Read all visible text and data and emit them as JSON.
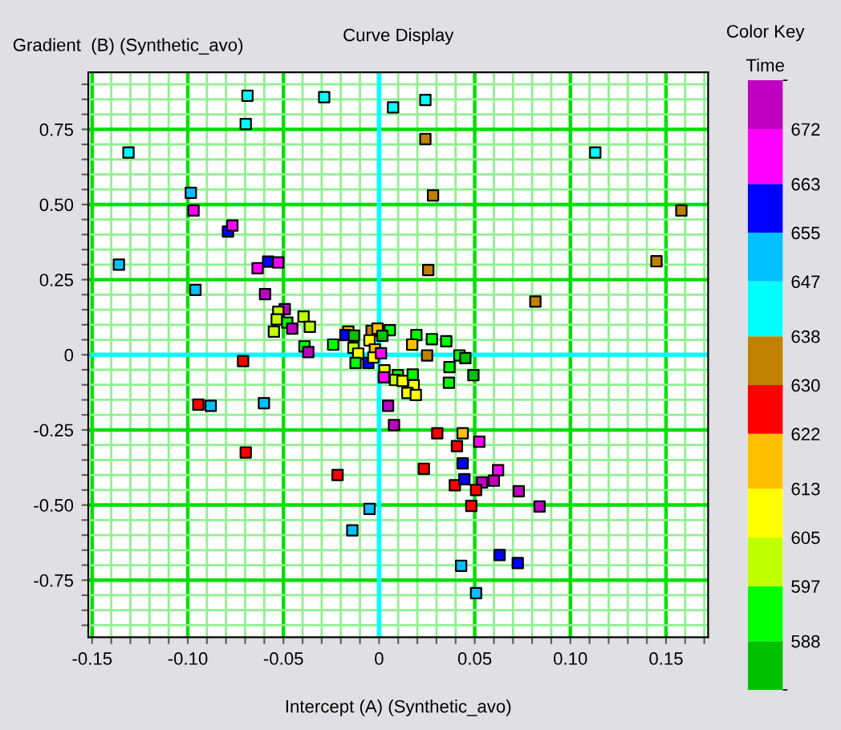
{
  "chart_data": {
    "type": "scatter",
    "title": "Curve Display",
    "xlabel": "Intercept (A) (Synthetic_avo)",
    "ylabel": "Gradient  (B) (Synthetic_avo)",
    "clabel": "Time",
    "annotations": [
      "Color Key"
    ],
    "xlim": [
      -0.152,
      0.172
    ],
    "ylim": [
      -0.94,
      0.94
    ],
    "xticks": [
      {
        "value": -0.15,
        "label": "-0.15"
      },
      {
        "value": -0.14,
        "label": null
      },
      {
        "value": -0.13,
        "label": null
      },
      {
        "value": -0.12,
        "label": null
      },
      {
        "value": -0.11,
        "label": null
      },
      {
        "value": -0.1,
        "label": "-0.10"
      },
      {
        "value": -0.09,
        "label": null
      },
      {
        "value": -0.08,
        "label": null
      },
      {
        "value": -0.07,
        "label": null
      },
      {
        "value": -0.06,
        "label": null
      },
      {
        "value": -0.05,
        "label": "-0.05"
      },
      {
        "value": -0.04,
        "label": null
      },
      {
        "value": -0.03,
        "label": null
      },
      {
        "value": -0.02,
        "label": null
      },
      {
        "value": -0.01,
        "label": null
      },
      0,
      {
        "value": 0.01,
        "label": null
      },
      {
        "value": 0.02,
        "label": null
      },
      {
        "value": 0.03,
        "label": null
      },
      {
        "value": 0.04,
        "label": null
      },
      0.05,
      {
        "value": 0.06,
        "label": null
      },
      {
        "value": 0.07,
        "label": null
      },
      {
        "value": 0.08,
        "label": null
      },
      {
        "value": 0.09,
        "label": null
      },
      {
        "value": 0.1,
        "label": "0.10"
      },
      {
        "value": 0.11,
        "label": null
      },
      {
        "value": 0.12,
        "label": null
      },
      {
        "value": 0.13,
        "label": null
      },
      {
        "value": 0.14,
        "label": null
      },
      0.15,
      {
        "value": 0.16,
        "label": null
      },
      {
        "value": 0.17,
        "label": null
      }
    ],
    "yticks": [
      {
        "value": -0.9,
        "label": null
      },
      {
        "value": -0.85,
        "label": null
      },
      {
        "value": -0.8,
        "label": null
      },
      -0.75,
      {
        "value": -0.7,
        "label": null
      },
      {
        "value": -0.65,
        "label": null
      },
      {
        "value": -0.6,
        "label": null
      },
      {
        "value": -0.55,
        "label": null
      },
      {
        "value": -0.5,
        "label": "-0.50"
      },
      {
        "value": -0.45,
        "label": null
      },
      {
        "value": -0.4,
        "label": null
      },
      {
        "value": -0.35,
        "label": null
      },
      {
        "value": -0.3,
        "label": null
      },
      -0.25,
      {
        "value": -0.2,
        "label": null
      },
      {
        "value": -0.15,
        "label": null
      },
      {
        "value": -0.1,
        "label": null
      },
      {
        "value": -0.05,
        "label": null
      },
      0,
      {
        "value": 0.05,
        "label": null
      },
      {
        "value": 0.1,
        "label": null
      },
      {
        "value": 0.15,
        "label": null
      },
      {
        "value": 0.2,
        "label": null
      },
      0.25,
      {
        "value": 0.3,
        "label": null
      },
      {
        "value": 0.35,
        "label": null
      },
      {
        "value": 0.4,
        "label": null
      },
      {
        "value": 0.45,
        "label": null
      },
      {
        "value": 0.5,
        "label": "0.50"
      },
      {
        "value": 0.55,
        "label": null
      },
      {
        "value": 0.6,
        "label": null
      },
      {
        "value": 0.65,
        "label": null
      },
      {
        "value": 0.7,
        "label": null
      },
      0.75,
      {
        "value": 0.8,
        "label": null
      },
      {
        "value": 0.85,
        "label": null
      },
      {
        "value": 0.9,
        "label": null
      }
    ],
    "grid": true,
    "marker": "square",
    "clim": [
      580,
      680
    ],
    "cticks": [
      588,
      597,
      605,
      613,
      622,
      630,
      638,
      647,
      655,
      663,
      672
    ],
    "colors": [
      "#00ffff",
      "#00ffff",
      "#00ffff",
      "#00ffff",
      "#00c0ff",
      "#ff00ff",
      "#0000ff",
      "#ff00ff",
      "#00c0ff",
      "#00c0ff",
      "#0000ff",
      "#ff00ff",
      "#ff00ff",
      "#c000c0",
      "#c000c0",
      "#c0ff00",
      "#c0ff00",
      "#c0ff00",
      "#00ff00",
      "#c000c0",
      "#c0ff00",
      "#c0ff00",
      "#00ff00",
      "#c000c0",
      "#00ff00",
      "#ffc000",
      "#0000ff",
      "#00c000",
      "#c0ff00",
      "#ffff00",
      "#00ff00",
      "#0000ff",
      "#c08000",
      "#ffc000",
      "#ffff00",
      "#ffc000",
      "#ffff00",
      "#ff00ff",
      "#00ffff",
      "#00ffff",
      "#c08000",
      "#00ffff",
      "#c08000",
      "#c08000",
      "#c08000",
      "#c08000",
      "#c08000",
      "#00ff00",
      "#00c000",
      "#00ff00",
      "#ffc000",
      "#00ff00",
      "#00ff00",
      "#c08000",
      "#00ff00",
      "#00c000",
      "#00ff00",
      "#ffff00",
      "#ff00ff",
      "#00ff00",
      "#c0ff00",
      "#ffff00",
      "#00ff00",
      "#ffff00",
      "#ffff00",
      "#ffff00",
      "#00ff00",
      "#00c000",
      "#c000c0",
      "#c000c0",
      "#ff0000",
      "#ffc000",
      "#ff0000",
      "#ff00ff",
      "#ff0000",
      "#0000ff",
      "#ff00ff",
      "#ff0000",
      "#0000ff",
      "#c000c0",
      "#c000c0",
      "#ff0000",
      "#c000c0",
      "#ff0000",
      "#c000c0",
      "#0000ff",
      "#0000ff",
      "#00c0ff",
      "#00c0ff",
      "#00c0ff",
      "#ff0000",
      "#ff0000",
      "#00c0ff",
      "#00c0ff",
      "#ff0000",
      "#ff0000",
      "#00c0ff"
    ],
    "x": [
      -0.0688,
      -0.0697,
      -0.0287,
      -0.131,
      -0.0984,
      -0.097,
      -0.079,
      -0.0767,
      -0.136,
      -0.096,
      -0.058,
      -0.0527,
      -0.0635,
      -0.0596,
      -0.0493,
      -0.0527,
      -0.0535,
      -0.055,
      -0.048,
      -0.0454,
      -0.0395,
      -0.0362,
      -0.039,
      -0.037,
      -0.024,
      -0.0161,
      -0.0176,
      -0.0131,
      -0.0134,
      -0.0109,
      -0.0123,
      -0.0056,
      -0.0039,
      -0.0008,
      -0.005,
      -0.0022,
      -0.003,
      0.001,
      0.0073,
      0.0242,
      0.0242,
      0.113,
      0.0282,
      0.158,
      0.145,
      0.0257,
      0.0817,
      0.0056,
      0.0017,
      0.0195,
      0.0173,
      0.0276,
      0.0351,
      0.0251,
      0.042,
      0.0451,
      0.0368,
      0.0028,
      0.0025,
      0.0098,
      0.0084,
      0.0123,
      0.0176,
      0.0181,
      0.0148,
      0.0192,
      0.0365,
      0.0493,
      0.0047,
      0.0078,
      0.0304,
      0.0437,
      0.0407,
      0.0524,
      0.0234,
      0.0437,
      0.0622,
      0.0396,
      0.0446,
      0.0538,
      0.06,
      0.0507,
      0.073,
      0.0482,
      0.0839,
      0.063,
      0.0725,
      0.0429,
      0.0507,
      -0.005,
      -0.0711,
      -0.0945,
      -0.088,
      -0.0602,
      -0.0697,
      -0.0217,
      -0.014
    ],
    "values": [
      0.862,
      0.768,
      0.857,
      0.673,
      0.539,
      0.48,
      0.41,
      0.43,
      0.3,
      0.216,
      0.31,
      0.307,
      0.288,
      0.202,
      0.152,
      0.143,
      0.118,
      0.077,
      0.107,
      0.087,
      0.127,
      0.093,
      0.028,
      0.009,
      0.034,
      0.077,
      0.066,
      0.064,
      0.023,
      0.004,
      -0.027,
      -0.027,
      0.08,
      0.087,
      0.048,
      0.018,
      -0.009,
      0.005,
      0.823,
      0.848,
      0.718,
      0.673,
      0.53,
      0.48,
      0.311,
      0.282,
      0.177,
      0.082,
      0.063,
      0.066,
      0.034,
      0.052,
      0.045,
      -0.002,
      -0.002,
      -0.011,
      -0.041,
      -0.052,
      -0.075,
      -0.068,
      -0.084,
      -0.087,
      -0.066,
      -0.102,
      -0.127,
      -0.134,
      -0.093,
      -0.068,
      -0.17,
      -0.234,
      -0.261,
      -0.261,
      -0.304,
      -0.289,
      -0.379,
      -0.361,
      -0.384,
      -0.434,
      -0.414,
      -0.425,
      -0.419,
      -0.45,
      -0.454,
      -0.503,
      -0.505,
      -0.666,
      -0.693,
      -0.702,
      -0.793,
      -0.513,
      -0.021,
      -0.166,
      -0.17,
      -0.161,
      -0.325,
      -0.4,
      -0.584
    ],
    "cvalues": [
      642,
      642,
      642,
      642,
      651,
      667,
      659,
      667,
      651,
      651,
      659,
      667,
      667,
      676,
      676,
      601,
      601,
      601,
      592,
      676,
      601,
      601,
      592,
      676,
      592,
      617,
      659,
      584,
      601,
      609,
      592,
      659,
      634,
      617,
      609,
      617,
      609,
      667,
      642,
      642,
      634,
      642,
      634,
      634,
      634,
      634,
      634,
      592,
      584,
      592,
      617,
      592,
      592,
      634,
      592,
      584,
      592,
      609,
      667,
      592,
      601,
      609,
      592,
      609,
      609,
      609,
      592,
      584,
      676,
      676,
      626,
      617,
      626,
      667,
      626,
      659,
      667,
      626,
      659,
      676,
      676,
      626,
      676,
      626,
      676,
      659,
      659,
      651,
      651,
      651,
      626,
      626,
      651,
      651,
      626,
      626,
      651
    ]
  }
}
